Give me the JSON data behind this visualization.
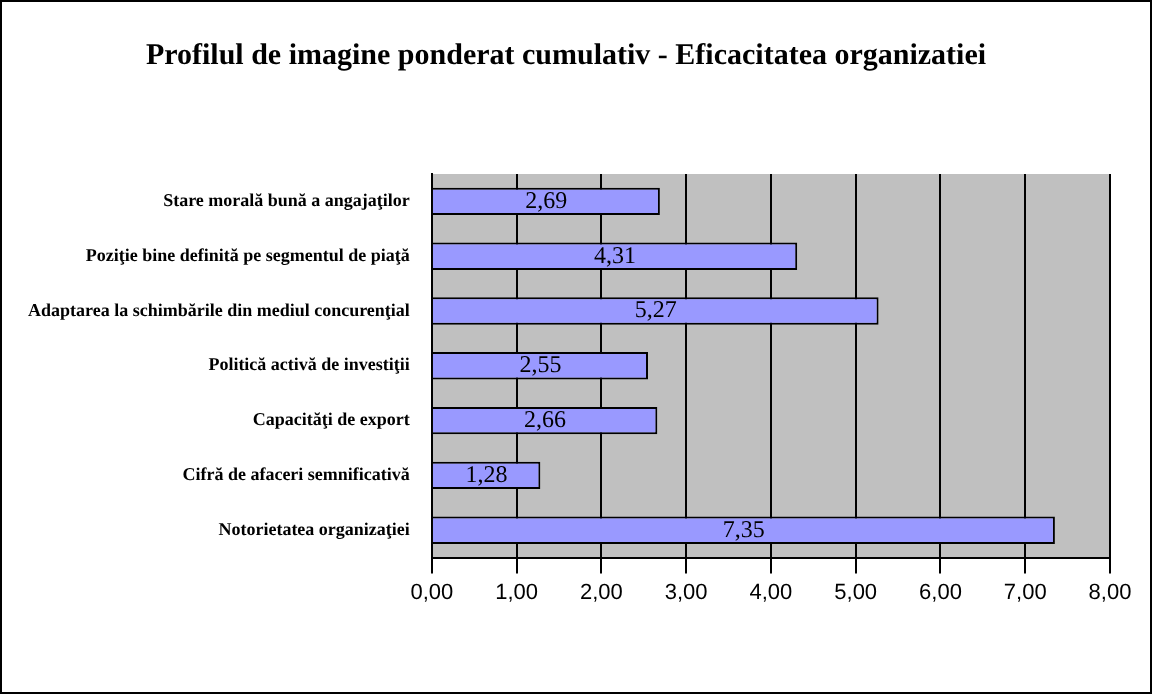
{
  "chart_data": {
    "type": "bar",
    "orientation": "horizontal",
    "title": "Profilul de imagine ponderat cumulativ - Eficacitatea organizatiei",
    "categories": [
      "Stare morală bună a angajaţilor",
      "Poziţie bine definită pe segmentul de piaţă",
      "Adaptarea la schimbările din mediul concurenţial",
      "Politică activă de investiţii",
      "Capacităţi de export",
      "Cifră de afaceri semnificativă",
      "Notorietatea organizaţiei"
    ],
    "values": [
      2.69,
      4.31,
      5.27,
      2.55,
      2.66,
      1.28,
      7.35
    ],
    "value_labels": [
      "2,69",
      "4,31",
      "5,27",
      "2,55",
      "2,66",
      "1,28",
      "7,35"
    ],
    "color": "#9999ff",
    "xlim": [
      0,
      8
    ],
    "xticks": [
      {
        "value": 0,
        "label": "0,00"
      },
      {
        "value": 1,
        "label": "1,00"
      },
      {
        "value": 2,
        "label": "2,00"
      },
      {
        "value": 3,
        "label": "3,00"
      },
      {
        "value": 4,
        "label": "4,00"
      },
      {
        "value": 5,
        "label": "5,00"
      },
      {
        "value": 6,
        "label": "6,00"
      },
      {
        "value": 7,
        "label": "7,00"
      },
      {
        "value": 8,
        "label": "8,00"
      }
    ],
    "grid": "x"
  }
}
